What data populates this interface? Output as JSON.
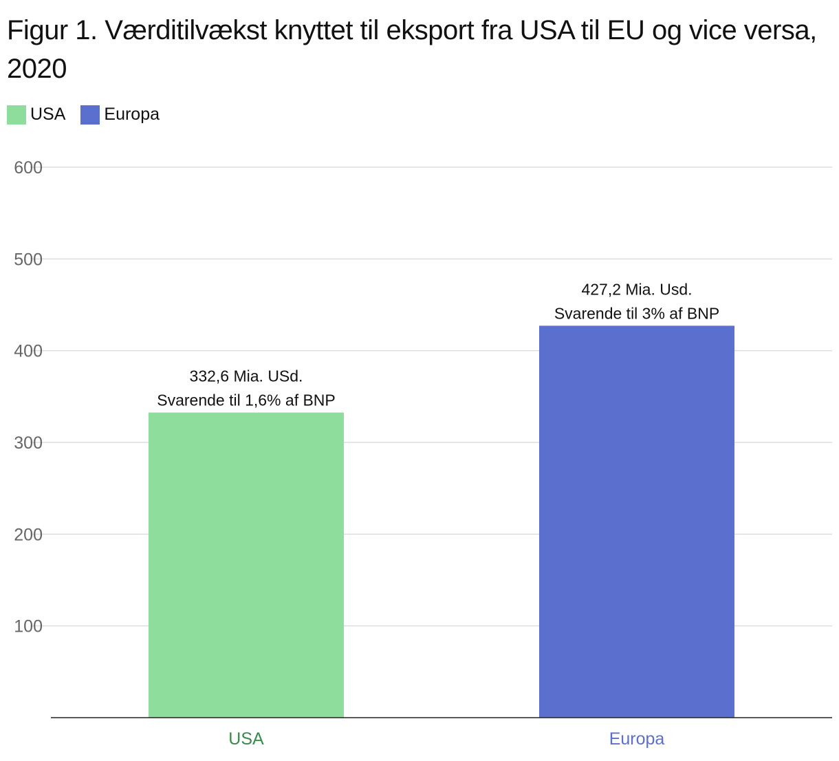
{
  "title": "Figur 1. Værditilvækst knyttet til eksport fra USA til EU og vice versa, 2020",
  "legend": [
    {
      "label": "USA",
      "color": "#8EDD9D"
    },
    {
      "label": "Europa",
      "color": "#5B70CE"
    }
  ],
  "chart_data": {
    "type": "bar",
    "title": "Figur 1. Værditilvækst knyttet til eksport fra USA til EU og vice versa, 2020",
    "xlabel": "",
    "ylabel": "",
    "ylim": [
      0,
      600
    ],
    "yticks": [
      100,
      200,
      300,
      400,
      500,
      600
    ],
    "grid": true,
    "legend_position": "top-left",
    "categories": [
      "USA",
      "Europa"
    ],
    "values": [
      332.6,
      427.2
    ],
    "colors": [
      "#8EDD9D",
      "#5B70CE"
    ],
    "category_label_colors": [
      "#3A8A4E",
      "#5B70CE"
    ],
    "annotations": [
      [
        "332,6 Mia. USd.",
        "Svarende til 1,6% af BNP"
      ],
      [
        "427,2 Mia. Usd.",
        "Svarende til 3% af BNP"
      ]
    ]
  }
}
